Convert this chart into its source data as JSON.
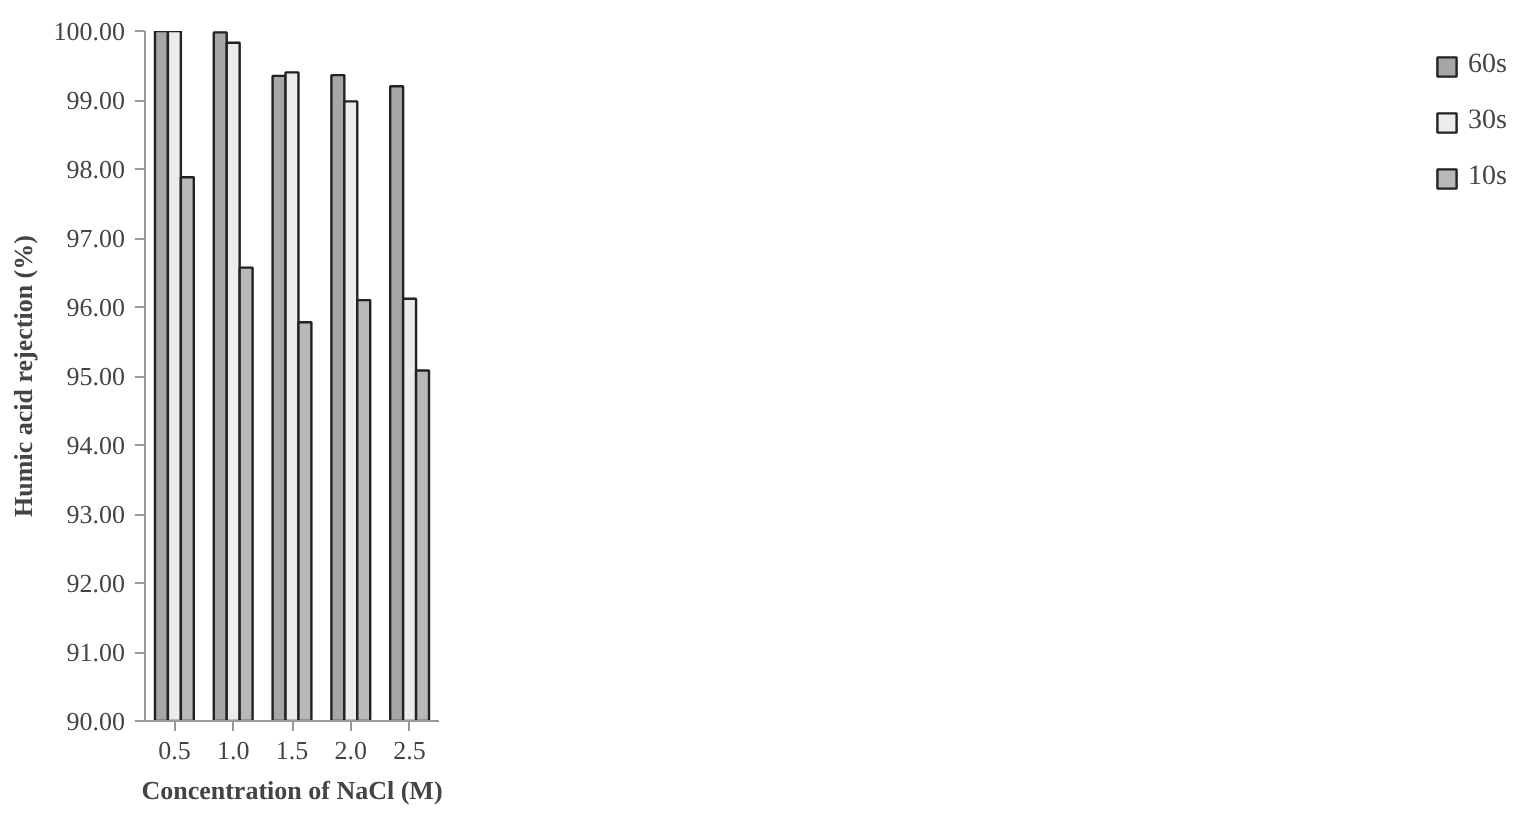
{
  "chart_data": {
    "type": "bar",
    "xlabel": "Concentration of NaCl (M)",
    "ylabel": "Humic acid rejection (%)",
    "categories": [
      "0.5",
      "1.0",
      "1.5",
      "2.0",
      "2.5"
    ],
    "series": [
      {
        "name": "60s",
        "color": "#a6a6a6",
        "values": [
          100.0,
          99.98,
          99.35,
          99.36,
          99.2
        ]
      },
      {
        "name": "30s",
        "color": "#ececec",
        "values": [
          100.0,
          99.83,
          99.4,
          98.98,
          96.12
        ]
      },
      {
        "name": "10s",
        "color": "#b8b8b8",
        "values": [
          97.88,
          96.57,
          95.78,
          96.1,
          95.08
        ]
      }
    ],
    "ylim": [
      90,
      100
    ],
    "yticks": [
      {
        "value": 90,
        "label": "90.00"
      },
      {
        "value": 91,
        "label": "91.00"
      },
      {
        "value": 92,
        "label": "92.00"
      },
      {
        "value": 93,
        "label": "93.00"
      },
      {
        "value": 94,
        "label": "94.00"
      },
      {
        "value": 95,
        "label": "95.00"
      },
      {
        "value": 96,
        "label": "96.00"
      },
      {
        "value": 97,
        "label": "97.00"
      },
      {
        "value": 98,
        "label": "98.00"
      },
      {
        "value": 99,
        "label": "99.00"
      },
      {
        "value": 100,
        "label": "100.00"
      }
    ],
    "grid": false,
    "legend": "right"
  }
}
